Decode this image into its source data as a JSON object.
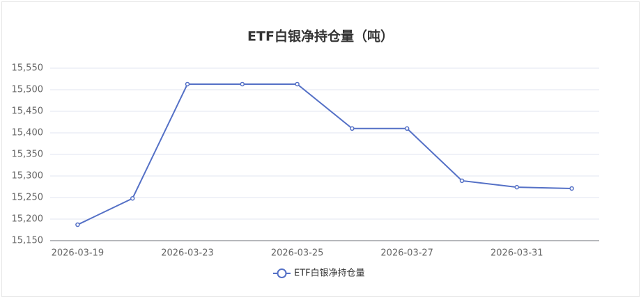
{
  "chart_data": {
    "type": "line",
    "title": "ETF白银净持仓量（吨）",
    "categories": [
      "2026-03-19",
      null,
      "2026-03-23",
      null,
      "2026-03-25",
      null,
      "2026-03-27",
      null,
      "2026-03-31",
      null
    ],
    "series": [
      {
        "name": "ETF白银净持仓量",
        "color": "#5470c6",
        "values": [
          15187,
          15248,
          15513,
          15513,
          15513,
          15410,
          15410,
          15289,
          15274,
          15271
        ]
      }
    ],
    "ylim": [
      15150,
      15550
    ],
    "yticks": [
      {
        "value": 15150,
        "label": "15,150"
      },
      {
        "value": 15200,
        "label": "15,200"
      },
      {
        "value": 15250,
        "label": "15,250"
      },
      {
        "value": 15300,
        "label": "15,300"
      },
      {
        "value": 15350,
        "label": "15,350"
      },
      {
        "value": 15400,
        "label": "15,400"
      },
      {
        "value": 15450,
        "label": "15,450"
      },
      {
        "value": 15500,
        "label": "15,500"
      },
      {
        "value": 15550,
        "label": "15,550"
      }
    ],
    "grid": true,
    "legend": "bottom"
  }
}
